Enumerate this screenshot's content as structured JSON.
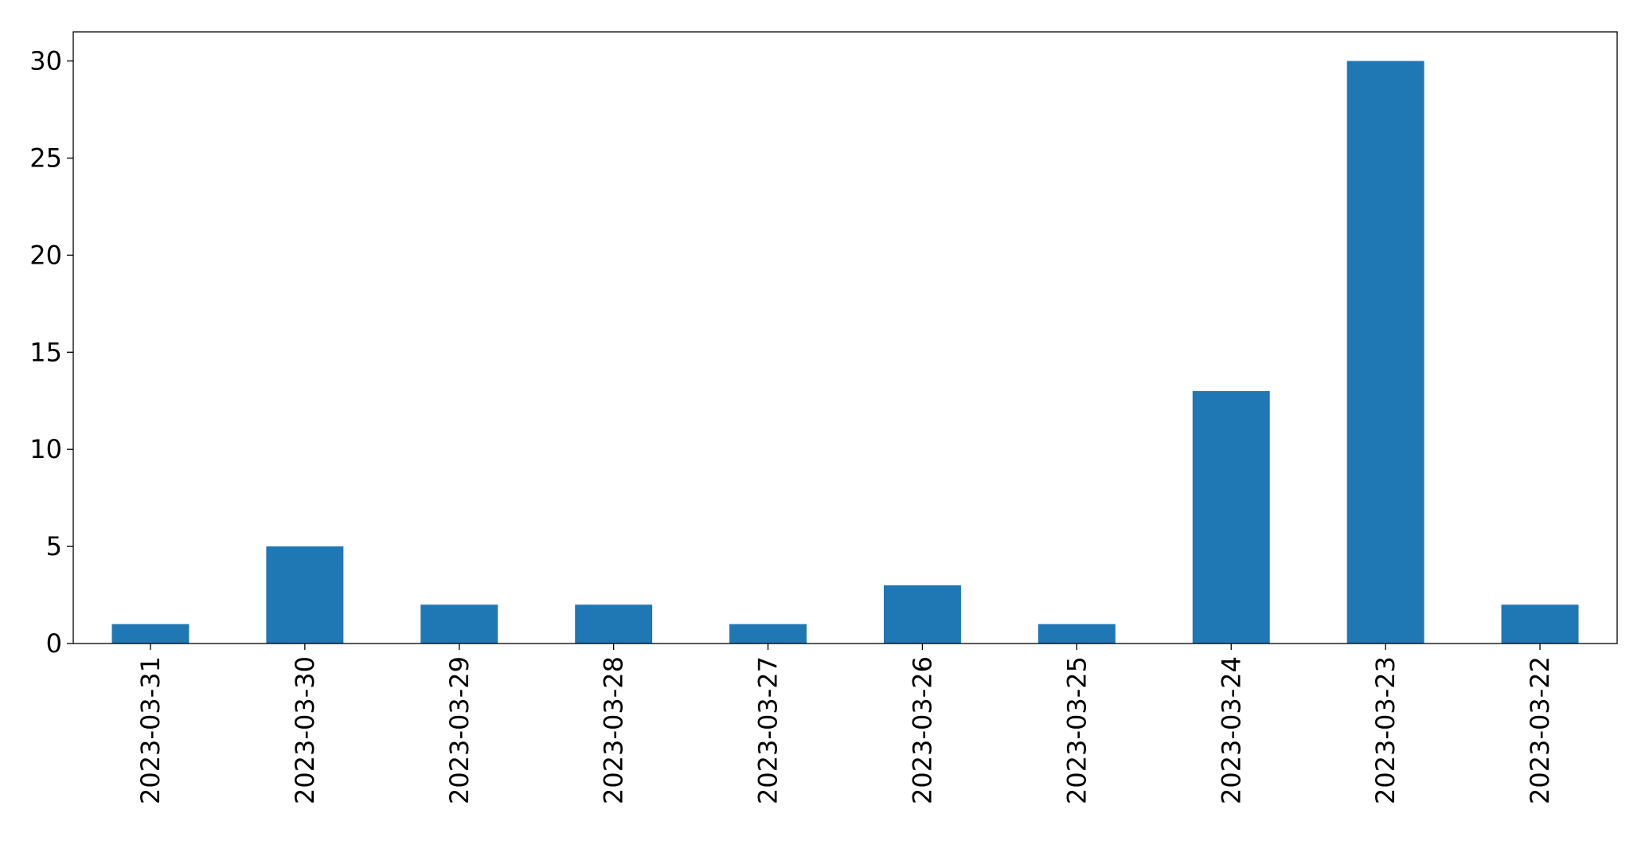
{
  "chart_data": {
    "type": "bar",
    "categories": [
      "2023-03-31",
      "2023-03-30",
      "2023-03-29",
      "2023-03-28",
      "2023-03-27",
      "2023-03-26",
      "2023-03-25",
      "2023-03-24",
      "2023-03-23",
      "2023-03-22"
    ],
    "values": [
      1,
      5,
      2,
      2,
      1,
      3,
      1,
      13,
      30,
      2
    ],
    "color": "#1f77b4",
    "ylim": [
      0,
      31.5
    ],
    "yticks": [
      0,
      5,
      10,
      15,
      20,
      25,
      30
    ],
    "grid": false
  }
}
